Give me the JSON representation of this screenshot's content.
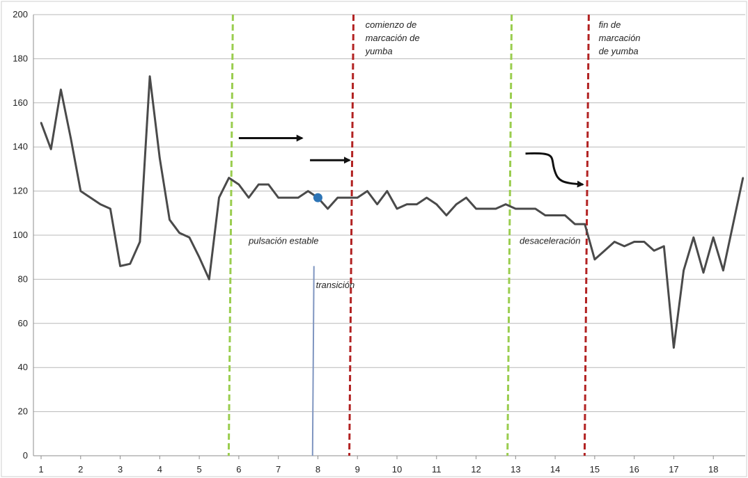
{
  "chart_data": {
    "type": "line",
    "title": "",
    "xlabel": "",
    "ylabel": "",
    "xlim": [
      1,
      19
    ],
    "ylim": [
      0,
      200
    ],
    "grid": true,
    "x_ticks": [
      1,
      2,
      3,
      4,
      5,
      6,
      7,
      8,
      9,
      10,
      11,
      12,
      13,
      14,
      15,
      16,
      17,
      18
    ],
    "y_ticks": [
      0,
      20,
      40,
      60,
      80,
      100,
      120,
      140,
      160,
      180,
      200
    ],
    "series": [
      {
        "color": "#4a4a4a",
        "points": [
          [
            1.0,
            151
          ],
          [
            1.25,
            139
          ],
          [
            1.5,
            166
          ],
          [
            1.75,
            144
          ],
          [
            2.0,
            120
          ],
          [
            2.25,
            117
          ],
          [
            2.5,
            114
          ],
          [
            2.75,
            112
          ],
          [
            3.0,
            86
          ],
          [
            3.25,
            87
          ],
          [
            3.5,
            97
          ],
          [
            3.75,
            172
          ],
          [
            4.0,
            135
          ],
          [
            4.25,
            107
          ],
          [
            4.5,
            101
          ],
          [
            4.75,
            99
          ],
          [
            5.0,
            90
          ],
          [
            5.25,
            80
          ],
          [
            5.5,
            117
          ],
          [
            5.75,
            126
          ],
          [
            6.0,
            123
          ],
          [
            6.25,
            117
          ],
          [
            6.5,
            123
          ],
          [
            6.75,
            123
          ],
          [
            7.0,
            117
          ],
          [
            7.25,
            117
          ],
          [
            7.5,
            117
          ],
          [
            7.75,
            120
          ],
          [
            8.0,
            117
          ],
          [
            8.25,
            112
          ],
          [
            8.5,
            117
          ],
          [
            8.75,
            117
          ],
          [
            9.0,
            117
          ],
          [
            9.25,
            120
          ],
          [
            9.5,
            114
          ],
          [
            9.75,
            120
          ],
          [
            10.0,
            112
          ],
          [
            10.25,
            114
          ],
          [
            10.5,
            114
          ],
          [
            10.75,
            117
          ],
          [
            11.0,
            114
          ],
          [
            11.25,
            109
          ],
          [
            11.5,
            114
          ],
          [
            11.75,
            117
          ],
          [
            12.0,
            112
          ],
          [
            12.25,
            112
          ],
          [
            12.5,
            112
          ],
          [
            12.75,
            114
          ],
          [
            13.0,
            112
          ],
          [
            13.25,
            112
          ],
          [
            13.5,
            112
          ],
          [
            13.75,
            109
          ],
          [
            14.0,
            109
          ],
          [
            14.25,
            109
          ],
          [
            14.5,
            105
          ],
          [
            14.75,
            105
          ],
          [
            15.0,
            89
          ],
          [
            15.25,
            93
          ],
          [
            15.5,
            97
          ],
          [
            15.75,
            95
          ],
          [
            16.0,
            97
          ],
          [
            16.25,
            97
          ],
          [
            16.5,
            93
          ],
          [
            16.75,
            95
          ],
          [
            17.0,
            49
          ],
          [
            17.25,
            84
          ],
          [
            17.5,
            99
          ],
          [
            17.75,
            83
          ],
          [
            18.0,
            99
          ],
          [
            18.25,
            84
          ],
          [
            18.5,
            105
          ],
          [
            18.75,
            126
          ]
        ]
      }
    ],
    "highlight_point": {
      "x": 8.0,
      "y": 117,
      "color": "#2e75b6"
    },
    "vertical_lines": [
      {
        "x": 5.85,
        "color": "#9acd4e",
        "style": "dashed"
      },
      {
        "x": 8.9,
        "color": "#b22222",
        "style": "dashed"
      },
      {
        "x": 12.9,
        "color": "#9acd4e",
        "style": "dashed"
      },
      {
        "x": 14.85,
        "color": "#b22222",
        "style": "dashed"
      },
      {
        "x": 7.9,
        "y_top": 86,
        "color": "#7f95c0",
        "style": "solid"
      }
    ],
    "annotations": [
      {
        "lines": [
          "comienzo de",
          "marcación de",
          "yumba"
        ],
        "x": 9.2,
        "y": 194
      },
      {
        "lines": [
          "fin de",
          "marcación",
          "de yumba"
        ],
        "x": 15.1,
        "y": 194
      },
      {
        "lines": [
          "pulsación estable"
        ],
        "x": 6.25,
        "y": 96
      },
      {
        "lines": [
          "transición"
        ],
        "x": 7.95,
        "y": 76
      },
      {
        "lines": [
          "desaceleración"
        ],
        "x": 13.1,
        "y": 96
      }
    ],
    "arrows": [
      {
        "kind": "straight",
        "from": [
          6.0,
          144
        ],
        "to": [
          7.6,
          144
        ]
      },
      {
        "kind": "straight",
        "from": [
          7.8,
          134
        ],
        "to": [
          8.8,
          134
        ]
      },
      {
        "kind": "curved",
        "from": [
          13.25,
          137
        ],
        "to": [
          14.7,
          123
        ]
      }
    ]
  }
}
